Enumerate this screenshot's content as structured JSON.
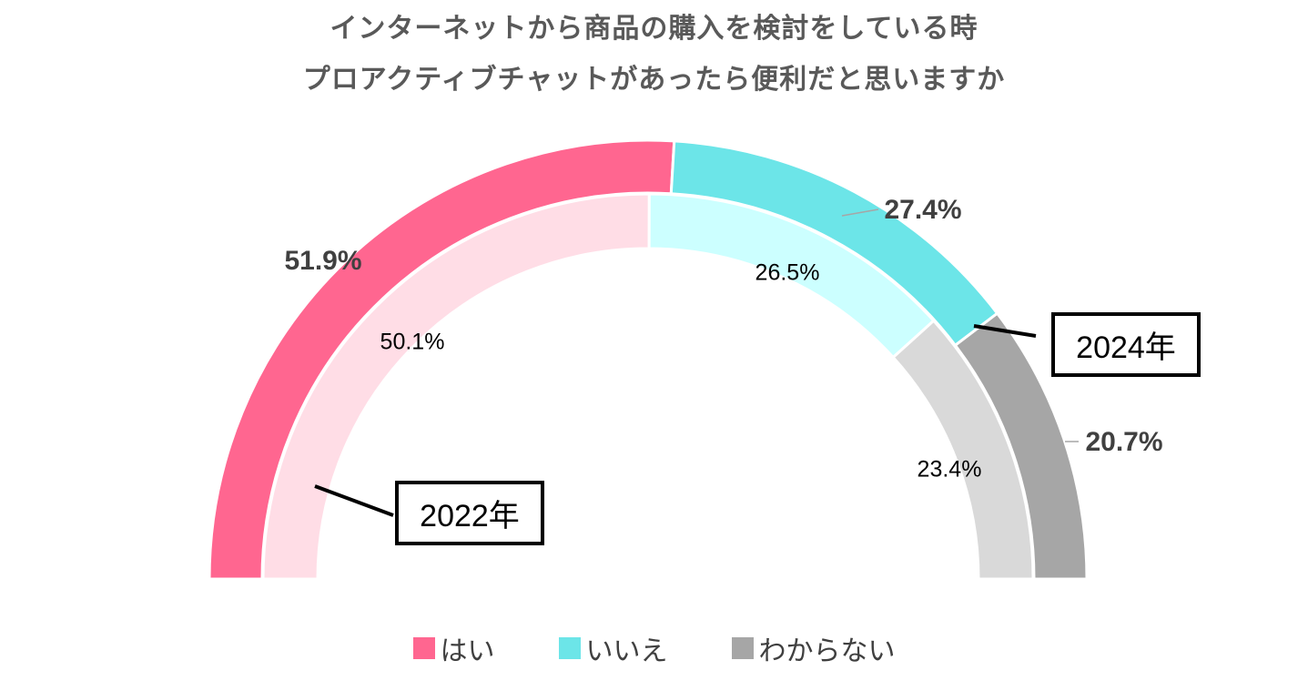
{
  "chart_data": {
    "type": "donut-semicircle",
    "title": "インターネットから商品の購入を検討をしている時",
    "subtitle": "プロアクティブチャットがあったら便利だと思いますか",
    "categories": [
      "はい",
      "いいえ",
      "わからない"
    ],
    "colors": {
      "outer": [
        "#FF6690",
        "#6CE5E8",
        "#A6A6A6"
      ],
      "inner": [
        "#FFDDE6",
        "#CCFFFF",
        "#D9D9D9"
      ]
    },
    "series": [
      {
        "name": "2024年",
        "ring": "outer",
        "values": [
          51.9,
          27.4,
          20.7
        ],
        "labels": [
          "51.9%",
          "27.4%",
          "20.7%"
        ]
      },
      {
        "name": "2022年",
        "ring": "inner",
        "values": [
          50.1,
          26.5,
          23.4
        ],
        "labels": [
          "50.1%",
          "26.5%",
          "23.4%"
        ]
      }
    ],
    "legend_position": "bottom"
  }
}
